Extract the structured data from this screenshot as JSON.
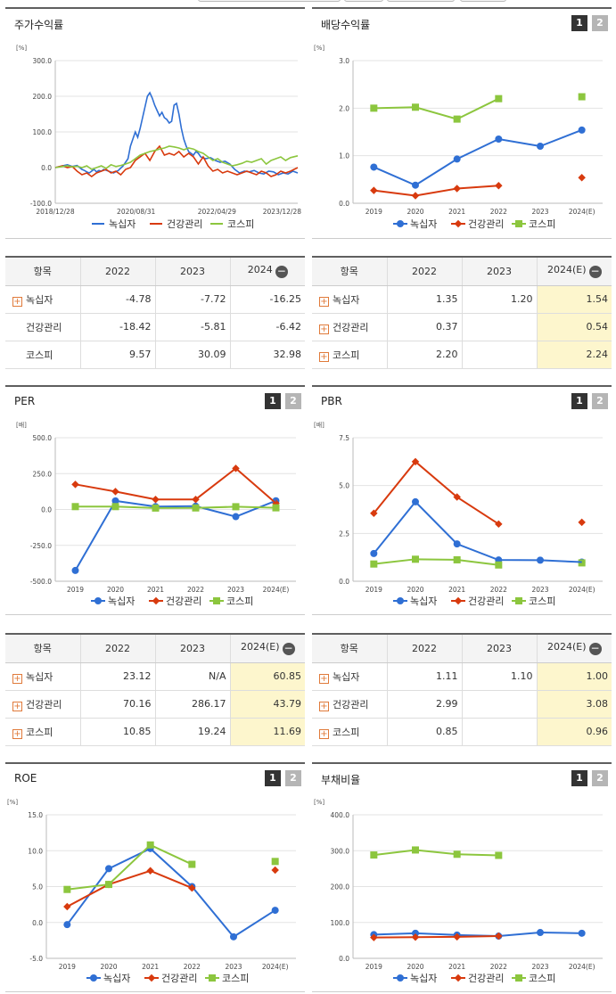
{
  "colors": {
    "s1": "#2f6fd4",
    "s2": "#d83a0e",
    "s3": "#8cc63e"
  },
  "legend": [
    "녹십자",
    "건강관리",
    "코스피"
  ],
  "charts": [
    {
      "id": "price",
      "title": "주가수익률",
      "type": "line",
      "unit": "[%]",
      "yticks": [
        "300.0",
        "200.0",
        "100.0",
        "0.0",
        "-100.0"
      ],
      "ylim": [
        -100,
        300
      ],
      "xticks": [
        "2018/12/28",
        "2020/08/31",
        "2022/04/29",
        "2023/12/28"
      ],
      "buttons": false,
      "series": [
        {
          "name": "녹십자",
          "x": [
            0,
            3,
            5,
            7,
            9,
            11,
            12,
            13,
            14,
            15,
            16,
            17,
            18,
            19,
            20,
            22,
            24,
            26,
            28,
            30,
            31,
            32,
            33,
            34,
            35,
            36,
            37,
            38,
            39,
            40,
            41,
            42,
            43,
            44,
            45,
            46,
            47,
            48,
            49,
            50,
            51,
            52,
            53,
            54,
            55,
            56,
            57,
            58,
            59,
            60,
            62,
            64,
            66,
            68,
            70,
            72,
            74,
            76,
            78,
            80,
            82,
            84,
            86,
            88,
            90,
            92,
            94,
            96,
            98,
            100
          ],
          "y": [
            0,
            5,
            8,
            3,
            6,
            -5,
            -8,
            -12,
            -15,
            -10,
            -5,
            -12,
            -8,
            -10,
            -5,
            -10,
            -15,
            -8,
            5,
            25,
            60,
            80,
            100,
            85,
            110,
            140,
            170,
            200,
            210,
            195,
            175,
            160,
            145,
            155,
            140,
            135,
            125,
            130,
            175,
            180,
            150,
            110,
            80,
            60,
            45,
            40,
            35,
            45,
            40,
            30,
            25,
            28,
            20,
            15,
            18,
            10,
            -5,
            -15,
            -10,
            -12,
            -8,
            -15,
            -18,
            -10,
            -12,
            -20,
            -15,
            -18,
            -10,
            -15
          ]
        },
        {
          "name": "건강관리",
          "x": [
            0,
            3,
            5,
            7,
            9,
            11,
            13,
            15,
            17,
            19,
            21,
            23,
            25,
            27,
            29,
            31,
            33,
            35,
            37,
            39,
            41,
            43,
            45,
            47,
            49,
            51,
            53,
            55,
            57,
            59,
            61,
            63,
            65,
            67,
            69,
            71,
            73,
            75,
            77,
            79,
            81,
            83,
            85,
            87,
            89,
            91,
            93,
            95,
            97,
            100
          ],
          "y": [
            0,
            5,
            0,
            3,
            -10,
            -20,
            -15,
            -25,
            -15,
            -10,
            -5,
            -15,
            -10,
            -20,
            -5,
            0,
            20,
            30,
            40,
            20,
            45,
            60,
            35,
            40,
            35,
            45,
            30,
            40,
            30,
            10,
            30,
            5,
            -10,
            -5,
            -15,
            -10,
            -15,
            -20,
            -15,
            -10,
            -15,
            -20,
            -10,
            -15,
            -25,
            -20,
            -10,
            -15,
            -10,
            0
          ]
        },
        {
          "name": "코스피",
          "x": [
            0,
            3,
            5,
            7,
            9,
            11,
            13,
            15,
            17,
            19,
            21,
            23,
            25,
            27,
            29,
            31,
            33,
            35,
            37,
            39,
            41,
            43,
            45,
            47,
            49,
            51,
            53,
            55,
            57,
            59,
            61,
            63,
            65,
            67,
            69,
            71,
            73,
            75,
            77,
            79,
            81,
            83,
            85,
            87,
            89,
            91,
            93,
            95,
            97,
            100
          ],
          "y": [
            0,
            3,
            5,
            2,
            4,
            0,
            5,
            -5,
            0,
            5,
            -2,
            8,
            3,
            6,
            10,
            15,
            25,
            35,
            40,
            45,
            48,
            52,
            55,
            60,
            58,
            55,
            50,
            55,
            52,
            45,
            40,
            30,
            20,
            25,
            15,
            10,
            5,
            8,
            12,
            18,
            15,
            20,
            25,
            10,
            20,
            25,
            30,
            20,
            28,
            33
          ]
        }
      ]
    },
    {
      "id": "dividend",
      "title": "배당수익률",
      "type": "line",
      "unit": "[%]",
      "yticks": [
        "3.0",
        "2.0",
        "1.0",
        "0.0"
      ],
      "ylim": [
        0,
        3
      ],
      "categories": [
        "2019",
        "2020",
        "2021",
        "2022",
        "2023",
        "2024(E)"
      ],
      "buttons": true,
      "series": [
        {
          "name": "녹십자",
          "values": [
            0.76,
            0.38,
            0.93,
            1.35,
            1.2,
            1.54
          ]
        },
        {
          "name": "건강관리",
          "values": [
            0.27,
            0.16,
            0.31,
            0.37,
            null,
            0.54
          ]
        },
        {
          "name": "코스피",
          "values": [
            2.0,
            2.02,
            1.77,
            2.2,
            null,
            2.24
          ]
        }
      ]
    },
    {
      "id": "per",
      "title": "PER",
      "type": "line",
      "unit": "[배]",
      "yticks": [
        "500.0",
        "250.0",
        "0.0",
        "-250.0",
        "-500.0"
      ],
      "ylim": [
        -500,
        500
      ],
      "categories": [
        "2019",
        "2020",
        "2021",
        "2022",
        "2023",
        "2024(E)"
      ],
      "buttons": true,
      "series": [
        {
          "name": "녹십자",
          "values": [
            -425,
            60,
            20,
            23.12,
            -50,
            60.85
          ]
        },
        {
          "name": "건강관리",
          "values": [
            175,
            125,
            70,
            70.16,
            286.17,
            43.79
          ]
        },
        {
          "name": "코스피",
          "values": [
            20,
            20,
            10,
            10.85,
            19.24,
            11.69
          ]
        }
      ]
    },
    {
      "id": "pbr",
      "title": "PBR",
      "type": "line",
      "unit": "[배]",
      "yticks": [
        "7.5",
        "5.0",
        "2.5",
        "0.0"
      ],
      "ylim": [
        0,
        7.5
      ],
      "categories": [
        "2019",
        "2020",
        "2021",
        "2022",
        "2023",
        "2024(E)"
      ],
      "buttons": true,
      "series": [
        {
          "name": "녹십자",
          "values": [
            1.45,
            4.15,
            1.95,
            1.11,
            1.1,
            1.0
          ]
        },
        {
          "name": "건강관리",
          "values": [
            3.55,
            6.25,
            4.4,
            2.99,
            null,
            3.08
          ]
        },
        {
          "name": "코스피",
          "values": [
            0.9,
            1.15,
            1.12,
            0.85,
            null,
            0.96
          ]
        }
      ]
    },
    {
      "id": "roe",
      "title": "ROE",
      "type": "line",
      "unit": "[%]",
      "yticks": [
        "15.0",
        "10.0",
        "5.0",
        "0.0",
        "-5.0"
      ],
      "ylim": [
        -5,
        15
      ],
      "categories": [
        "2019",
        "2020",
        "2021",
        "2022",
        "2023",
        "2024(E)"
      ],
      "buttons": true,
      "series": [
        {
          "name": "녹십자",
          "values": [
            -0.3,
            7.5,
            10.3,
            5.0,
            -2.0,
            1.7
          ]
        },
        {
          "name": "건강관리",
          "values": [
            2.2,
            5.3,
            7.2,
            4.8,
            null,
            7.3
          ]
        },
        {
          "name": "코스피",
          "values": [
            4.6,
            5.3,
            10.8,
            8.1,
            null,
            8.5
          ]
        }
      ]
    },
    {
      "id": "debt",
      "title": "부채비율",
      "type": "line",
      "unit": "[%]",
      "yticks": [
        "400.0",
        "300.0",
        "200.0",
        "100.0",
        "0.0"
      ],
      "ylim": [
        0,
        400
      ],
      "categories": [
        "2019",
        "2020",
        "2021",
        "2022",
        "2023",
        "2024(E)"
      ],
      "buttons": true,
      "series": [
        {
          "name": "녹십자",
          "values": [
            66,
            70,
            65,
            62,
            72,
            70
          ]
        },
        {
          "name": "건강관리",
          "values": [
            58,
            59,
            60,
            62,
            null,
            null
          ]
        },
        {
          "name": "코스피",
          "values": [
            288,
            302,
            290,
            287,
            null,
            null
          ]
        }
      ]
    }
  ],
  "tables": {
    "price": {
      "header": [
        "항목",
        "2022",
        "2023",
        "2024"
      ],
      "rows": [
        {
          "label": "녹십자",
          "plus": true,
          "v": [
            "-4.78",
            "-7.72",
            "-16.25"
          ]
        },
        {
          "label": "건강관리",
          "plus": false,
          "v": [
            "-18.42",
            "-5.81",
            "-6.42"
          ]
        },
        {
          "label": "코스피",
          "plus": false,
          "v": [
            "9.57",
            "30.09",
            "32.98"
          ]
        }
      ]
    },
    "dividend": {
      "header": [
        "항목",
        "2022",
        "2023",
        "2024(E)"
      ],
      "rows": [
        {
          "label": "녹십자",
          "plus": true,
          "v": [
            "1.35",
            "1.20",
            "1.54"
          ]
        },
        {
          "label": "건강관리",
          "plus": true,
          "v": [
            "0.37",
            "",
            "0.54"
          ]
        },
        {
          "label": "코스피",
          "plus": true,
          "v": [
            "2.20",
            "",
            "2.24"
          ]
        }
      ]
    },
    "per": {
      "header": [
        "항목",
        "2022",
        "2023",
        "2024(E)"
      ],
      "rows": [
        {
          "label": "녹십자",
          "plus": true,
          "v": [
            "23.12",
            "N/A",
            "60.85"
          ]
        },
        {
          "label": "건강관리",
          "plus": true,
          "v": [
            "70.16",
            "286.17",
            "43.79"
          ]
        },
        {
          "label": "코스피",
          "plus": true,
          "v": [
            "10.85",
            "19.24",
            "11.69"
          ]
        }
      ]
    },
    "pbr": {
      "header": [
        "항목",
        "2022",
        "2023",
        "2024(E)"
      ],
      "rows": [
        {
          "label": "녹십자",
          "plus": true,
          "v": [
            "1.11",
            "1.10",
            "1.00"
          ]
        },
        {
          "label": "건강관리",
          "plus": true,
          "v": [
            "2.99",
            "",
            "3.08"
          ]
        },
        {
          "label": "코스피",
          "plus": true,
          "v": [
            "0.85",
            "",
            "0.96"
          ]
        }
      ]
    }
  }
}
